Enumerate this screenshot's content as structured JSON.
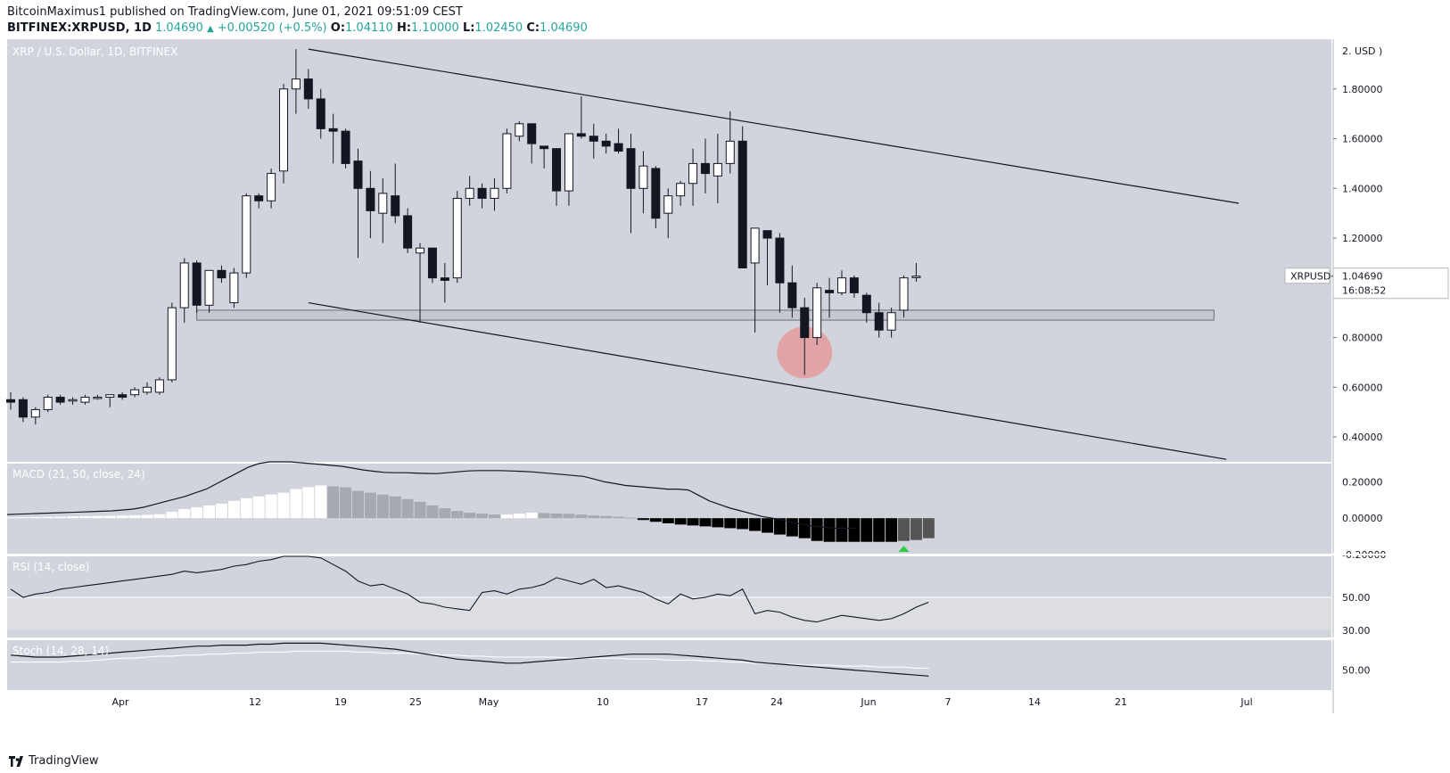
{
  "header": {
    "author": "BitcoinMaximus1",
    "published_text": "published on TradingView.com, June 01, 2021 09:51:09 CEST",
    "symbol": "BITFINEX:XRPUSD, 1D",
    "last": "1.04690",
    "change": "+0.00520 (+0.5%)",
    "open_label": "O:",
    "open": "1.04110",
    "high_label": "H:",
    "high": "1.10000",
    "low_label": "L:",
    "low": "1.02450",
    "close_label": "C:",
    "close": "1.04690"
  },
  "footer": {
    "brand": "TradingView"
  },
  "chart_data": [
    {
      "type": "candlestick",
      "title": "XRP / U.S. Dollar, 1D, BITFINEX",
      "axis_unit_label": "2. USD )",
      "ylim": [
        0.3,
        2.0
      ],
      "y_ticks": [
        0.4,
        0.6,
        0.8,
        1.0,
        1.2,
        1.4,
        1.6,
        1.8
      ],
      "x_tick_labels": [
        "Apr",
        "12",
        "19",
        "25",
        "May",
        "10",
        "17",
        "24",
        "Jun",
        "7",
        "14",
        "21",
        "Jul"
      ],
      "candles": [
        {
          "date": "2021-03-20",
          "o": 0.55,
          "h": 0.58,
          "l": 0.51,
          "c": 0.54
        },
        {
          "date": "2021-03-21",
          "o": 0.55,
          "h": 0.56,
          "l": 0.46,
          "c": 0.48
        },
        {
          "date": "2021-03-22",
          "o": 0.48,
          "h": 0.52,
          "l": 0.45,
          "c": 0.51
        },
        {
          "date": "2021-03-23",
          "o": 0.51,
          "h": 0.57,
          "l": 0.5,
          "c": 0.56
        },
        {
          "date": "2021-03-24",
          "o": 0.56,
          "h": 0.57,
          "l": 0.53,
          "c": 0.54
        },
        {
          "date": "2021-03-25",
          "o": 0.55,
          "h": 0.56,
          "l": 0.53,
          "c": 0.55
        },
        {
          "date": "2021-03-26",
          "o": 0.54,
          "h": 0.57,
          "l": 0.53,
          "c": 0.56
        },
        {
          "date": "2021-03-27",
          "o": 0.56,
          "h": 0.57,
          "l": 0.55,
          "c": 0.56
        },
        {
          "date": "2021-03-28",
          "o": 0.56,
          "h": 0.57,
          "l": 0.52,
          "c": 0.57
        },
        {
          "date": "2021-03-29",
          "o": 0.57,
          "h": 0.58,
          "l": 0.55,
          "c": 0.56
        },
        {
          "date": "2021-03-30",
          "o": 0.57,
          "h": 0.6,
          "l": 0.56,
          "c": 0.59
        },
        {
          "date": "2021-03-31",
          "o": 0.58,
          "h": 0.62,
          "l": 0.57,
          "c": 0.6
        },
        {
          "date": "2021-04-01",
          "o": 0.58,
          "h": 0.64,
          "l": 0.57,
          "c": 0.63
        },
        {
          "date": "2021-04-02",
          "o": 0.63,
          "h": 0.94,
          "l": 0.62,
          "c": 0.92
        },
        {
          "date": "2021-04-03",
          "o": 0.92,
          "h": 1.12,
          "l": 0.86,
          "c": 1.1
        },
        {
          "date": "2021-04-04",
          "o": 1.1,
          "h": 1.11,
          "l": 0.9,
          "c": 0.93
        },
        {
          "date": "2021-04-05",
          "o": 0.93,
          "h": 1.07,
          "l": 0.9,
          "c": 1.07
        },
        {
          "date": "2021-04-06",
          "o": 1.07,
          "h": 1.09,
          "l": 1.02,
          "c": 1.04
        },
        {
          "date": "2021-04-07",
          "o": 0.94,
          "h": 1.08,
          "l": 0.92,
          "c": 1.06
        },
        {
          "date": "2021-04-08",
          "o": 1.06,
          "h": 1.38,
          "l": 1.04,
          "c": 1.37
        },
        {
          "date": "2021-04-09",
          "o": 1.37,
          "h": 1.38,
          "l": 1.32,
          "c": 1.35
        },
        {
          "date": "2021-04-10",
          "o": 1.35,
          "h": 1.48,
          "l": 1.32,
          "c": 1.46
        },
        {
          "date": "2021-04-11",
          "o": 1.47,
          "h": 1.82,
          "l": 1.42,
          "c": 1.8
        },
        {
          "date": "2021-04-12",
          "o": 1.8,
          "h": 1.96,
          "l": 1.7,
          "c": 1.84
        },
        {
          "date": "2021-04-13",
          "o": 1.84,
          "h": 1.88,
          "l": 1.72,
          "c": 1.76
        },
        {
          "date": "2021-04-14",
          "o": 1.76,
          "h": 1.8,
          "l": 1.6,
          "c": 1.64
        },
        {
          "date": "2021-04-15",
          "o": 1.64,
          "h": 1.7,
          "l": 1.5,
          "c": 1.63
        },
        {
          "date": "2021-04-16",
          "o": 1.63,
          "h": 1.64,
          "l": 1.48,
          "c": 1.5
        },
        {
          "date": "2021-04-17",
          "o": 1.51,
          "h": 1.56,
          "l": 1.12,
          "c": 1.4
        },
        {
          "date": "2021-04-18",
          "o": 1.4,
          "h": 1.47,
          "l": 1.2,
          "c": 1.31
        },
        {
          "date": "2021-04-19",
          "o": 1.3,
          "h": 1.44,
          "l": 1.18,
          "c": 1.38
        },
        {
          "date": "2021-04-20",
          "o": 1.37,
          "h": 1.5,
          "l": 1.26,
          "c": 1.29
        },
        {
          "date": "2021-04-21",
          "o": 1.29,
          "h": 1.32,
          "l": 1.14,
          "c": 1.16
        },
        {
          "date": "2021-04-22",
          "o": 1.14,
          "h": 1.18,
          "l": 0.86,
          "c": 1.16
        },
        {
          "date": "2021-04-23",
          "o": 1.16,
          "h": 1.16,
          "l": 1.02,
          "c": 1.04
        },
        {
          "date": "2021-04-24",
          "o": 1.04,
          "h": 1.1,
          "l": 0.94,
          "c": 1.03
        },
        {
          "date": "2021-04-25",
          "o": 1.04,
          "h": 1.39,
          "l": 1.02,
          "c": 1.36
        },
        {
          "date": "2021-04-26",
          "o": 1.36,
          "h": 1.45,
          "l": 1.33,
          "c": 1.4
        },
        {
          "date": "2021-04-27",
          "o": 1.4,
          "h": 1.42,
          "l": 1.32,
          "c": 1.36
        },
        {
          "date": "2021-04-28",
          "o": 1.36,
          "h": 1.44,
          "l": 1.31,
          "c": 1.4
        },
        {
          "date": "2021-04-29",
          "o": 1.4,
          "h": 1.64,
          "l": 1.38,
          "c": 1.62
        },
        {
          "date": "2021-04-30",
          "o": 1.61,
          "h": 1.67,
          "l": 1.59,
          "c": 1.66
        },
        {
          "date": "2021-05-01",
          "o": 1.66,
          "h": 1.66,
          "l": 1.5,
          "c": 1.58
        },
        {
          "date": "2021-05-02",
          "o": 1.57,
          "h": 1.57,
          "l": 1.48,
          "c": 1.56
        },
        {
          "date": "2021-05-03",
          "o": 1.56,
          "h": 1.56,
          "l": 1.33,
          "c": 1.39
        },
        {
          "date": "2021-05-04",
          "o": 1.39,
          "h": 1.62,
          "l": 1.33,
          "c": 1.62
        },
        {
          "date": "2021-05-05",
          "o": 1.62,
          "h": 1.77,
          "l": 1.6,
          "c": 1.61
        },
        {
          "date": "2021-05-06",
          "o": 1.61,
          "h": 1.66,
          "l": 1.52,
          "c": 1.59
        },
        {
          "date": "2021-05-07",
          "o": 1.59,
          "h": 1.62,
          "l": 1.54,
          "c": 1.57
        },
        {
          "date": "2021-05-08",
          "o": 1.58,
          "h": 1.64,
          "l": 1.54,
          "c": 1.55
        },
        {
          "date": "2021-05-09",
          "o": 1.56,
          "h": 1.62,
          "l": 1.22,
          "c": 1.4
        },
        {
          "date": "2021-05-10",
          "o": 1.4,
          "h": 1.55,
          "l": 1.3,
          "c": 1.49
        },
        {
          "date": "2021-05-11",
          "o": 1.48,
          "h": 1.49,
          "l": 1.24,
          "c": 1.28
        },
        {
          "date": "2021-05-12",
          "o": 1.3,
          "h": 1.4,
          "l": 1.2,
          "c": 1.37
        },
        {
          "date": "2021-05-13",
          "o": 1.37,
          "h": 1.43,
          "l": 1.33,
          "c": 1.42
        },
        {
          "date": "2021-05-14",
          "o": 1.42,
          "h": 1.56,
          "l": 1.33,
          "c": 1.5
        },
        {
          "date": "2021-05-15",
          "o": 1.5,
          "h": 1.6,
          "l": 1.38,
          "c": 1.46
        },
        {
          "date": "2021-05-16",
          "o": 1.45,
          "h": 1.62,
          "l": 1.34,
          "c": 1.5
        },
        {
          "date": "2021-05-17",
          "o": 1.5,
          "h": 1.71,
          "l": 1.46,
          "c": 1.59
        },
        {
          "date": "2021-05-18",
          "o": 1.59,
          "h": 1.65,
          "l": 1.08,
          "c": 1.08
        },
        {
          "date": "2021-05-19",
          "o": 1.1,
          "h": 1.24,
          "l": 0.82,
          "c": 1.24
        },
        {
          "date": "2021-05-20",
          "o": 1.23,
          "h": 1.22,
          "l": 1.01,
          "c": 1.2
        },
        {
          "date": "2021-05-21",
          "o": 1.2,
          "h": 1.22,
          "l": 0.9,
          "c": 1.02
        },
        {
          "date": "2021-05-22",
          "o": 1.02,
          "h": 1.09,
          "l": 0.88,
          "c": 0.92
        },
        {
          "date": "2021-05-23",
          "o": 0.92,
          "h": 0.96,
          "l": 0.65,
          "c": 0.8
        },
        {
          "date": "2021-05-24",
          "o": 0.8,
          "h": 1.02,
          "l": 0.77,
          "c": 1.0
        },
        {
          "date": "2021-05-25",
          "o": 0.99,
          "h": 1.04,
          "l": 0.88,
          "c": 0.98
        },
        {
          "date": "2021-05-26",
          "o": 0.98,
          "h": 1.07,
          "l": 0.97,
          "c": 1.04
        },
        {
          "date": "2021-05-27",
          "o": 1.04,
          "h": 1.05,
          "l": 0.96,
          "c": 0.98
        },
        {
          "date": "2021-05-28",
          "o": 0.97,
          "h": 0.98,
          "l": 0.86,
          "c": 0.9
        },
        {
          "date": "2021-05-29",
          "o": 0.9,
          "h": 0.94,
          "l": 0.8,
          "c": 0.83
        },
        {
          "date": "2021-05-30",
          "o": 0.83,
          "h": 0.92,
          "l": 0.8,
          "c": 0.9
        },
        {
          "date": "2021-05-31",
          "o": 0.91,
          "h": 1.05,
          "l": 0.88,
          "c": 1.04
        },
        {
          "date": "2021-06-01",
          "o": 1.0411,
          "h": 1.1,
          "l": 1.0245,
          "c": 1.0469
        }
      ],
      "trendlines": [
        {
          "from": {
            "date": "2021-04-13",
            "price": 1.96
          },
          "to": {
            "date": "2021-06-27",
            "price": 1.34
          }
        },
        {
          "from": {
            "date": "2021-04-13",
            "price": 0.94
          },
          "to": {
            "date": "2021-06-26",
            "price": 0.31
          }
        }
      ],
      "support_zone": {
        "from_date": "2021-04-04",
        "to_date": "2021-06-25",
        "low": 0.87,
        "high": 0.91
      },
      "highlight_ellipse": {
        "date": "2021-05-23",
        "price": 0.74
      },
      "price_label": {
        "symbol": "XRPUSD",
        "value": "1.04690",
        "countdown": "16:08:52"
      }
    },
    {
      "type": "histogram",
      "title": "MACD (21, 50, close, 24)",
      "ylim": [
        -0.2,
        0.3
      ],
      "y_ticks": [
        0.2,
        0.0,
        -0.2
      ],
      "y_tick_labels": [
        "0.20000",
        "0.00000",
        "-0.20000"
      ],
      "histogram": [
        0.004,
        0.005,
        0.006,
        0.007,
        0.008,
        0.01,
        0.011,
        0.012,
        0.013,
        0.015,
        0.016,
        0.018,
        0.022,
        0.035,
        0.05,
        0.06,
        0.07,
        0.08,
        0.095,
        0.11,
        0.12,
        0.13,
        0.14,
        0.16,
        0.17,
        0.18,
        0.175,
        0.17,
        0.15,
        0.14,
        0.13,
        0.12,
        0.105,
        0.09,
        0.07,
        0.055,
        0.04,
        0.03,
        0.025,
        0.02,
        0.02,
        0.025,
        0.03,
        0.028,
        0.026,
        0.024,
        0.02,
        0.015,
        0.012,
        0.008,
        0.003,
        -0.01,
        -0.02,
        -0.028,
        -0.035,
        -0.04,
        -0.045,
        -0.05,
        -0.055,
        -0.06,
        -0.07,
        -0.08,
        -0.09,
        -0.1,
        -0.11,
        -0.125,
        -0.13,
        -0.13,
        -0.13,
        -0.13,
        -0.13,
        -0.13,
        -0.125,
        -0.12,
        -0.11
      ],
      "line": [
        0.02,
        0.022,
        0.024,
        0.026,
        0.028,
        0.03,
        0.032,
        0.034,
        0.036,
        0.038,
        0.04,
        0.045,
        0.05,
        0.06,
        0.075,
        0.09,
        0.105,
        0.12,
        0.14,
        0.16,
        0.19,
        0.22,
        0.25,
        0.28,
        0.3,
        0.31,
        0.31,
        0.31,
        0.305,
        0.3,
        0.295,
        0.29,
        0.285,
        0.275,
        0.265,
        0.258,
        0.252,
        0.25,
        0.25,
        0.248,
        0.246,
        0.245,
        0.25,
        0.255,
        0.26,
        0.262,
        0.262,
        0.262,
        0.26,
        0.258,
        0.255,
        0.25,
        0.245,
        0.24,
        0.235,
        0.23,
        0.215,
        0.2,
        0.19,
        0.18,
        0.175,
        0.17,
        0.165,
        0.16,
        0.16,
        0.155,
        0.125,
        0.095,
        0.075,
        0.055,
        0.04,
        0.025,
        0.01,
        0.0,
        -0.01,
        -0.025,
        -0.035,
        -0.045,
        -0.05,
        -0.055,
        -0.055,
        -0.055
      ],
      "signal_marker": {
        "date": "2021-05-31"
      }
    },
    {
      "type": "line",
      "title": "RSI (14, close)",
      "ylim": [
        25,
        75
      ],
      "y_ticks": [
        50,
        30
      ],
      "y_tick_labels": [
        "50.00",
        "30.00"
      ],
      "values": [
        55,
        50,
        52,
        53,
        55,
        56,
        57,
        58,
        59,
        60,
        61,
        62,
        63,
        64,
        66,
        65,
        66,
        67,
        69,
        70,
        72,
        73,
        75,
        78,
        77,
        74,
        70,
        66,
        60,
        57,
        58,
        55,
        52,
        47,
        46,
        44,
        43,
        42,
        53,
        54,
        52,
        55,
        56,
        58,
        62,
        60,
        58,
        61,
        56,
        57,
        55,
        53,
        49,
        46,
        52,
        49,
        50,
        52,
        51,
        55,
        40,
        42,
        41,
        38,
        36,
        35,
        37,
        39,
        38,
        37,
        36,
        37,
        40,
        44,
        47
      ],
      "band": [
        30,
        50
      ]
    },
    {
      "type": "line",
      "title": "Stoch (14, 28, 14)",
      "ylim": [
        30,
        80
      ],
      "y_ticks": [
        50
      ],
      "y_tick_labels": [
        "50.00"
      ],
      "k": [
        65,
        64,
        63,
        63,
        63,
        64,
        65,
        66,
        67,
        68,
        69,
        70,
        71,
        72,
        73,
        74,
        74,
        75,
        75,
        75,
        76,
        76,
        77,
        77,
        77,
        77,
        76,
        75,
        74,
        73,
        72,
        71,
        69,
        67,
        65,
        63,
        61,
        60,
        59,
        58,
        57,
        57,
        58,
        59,
        60,
        61,
        62,
        63,
        64,
        65,
        66,
        66,
        66,
        66,
        65,
        64,
        63,
        62,
        61,
        60,
        58,
        57,
        56,
        55,
        54,
        53,
        52,
        51,
        50,
        49,
        48,
        47,
        46,
        45,
        44
      ],
      "d": [
        58,
        58,
        58,
        58,
        58,
        59,
        59,
        60,
        61,
        62,
        62,
        63,
        64,
        64,
        65,
        65,
        66,
        66,
        67,
        67,
        68,
        68,
        68,
        69,
        69,
        69,
        69,
        69,
        68,
        68,
        67,
        67,
        67,
        66,
        66,
        65,
        65,
        64,
        64,
        63,
        63,
        63,
        63,
        63,
        63,
        62,
        62,
        62,
        62,
        62,
        61,
        61,
        61,
        60,
        60,
        60,
        59,
        59,
        58,
        58,
        57,
        57,
        56,
        56,
        55,
        55,
        55,
        54,
        54,
        54,
        53,
        53,
        53,
        52,
        52
      ]
    }
  ],
  "colors": {
    "pane_bg": "#d1d4dc",
    "axis_bg": "#ffffff",
    "up_candle": "#ffffff",
    "down_candle": "#131722",
    "line": "#131722",
    "hist_up": "#ffffff",
    "hist_up_fading": "#a7a9b0",
    "hist_down": "#000000",
    "hist_down_fading": "#555555",
    "ellipse": "#e88a8a",
    "marker": "#2ecc40",
    "header_value": "#26a69a"
  }
}
